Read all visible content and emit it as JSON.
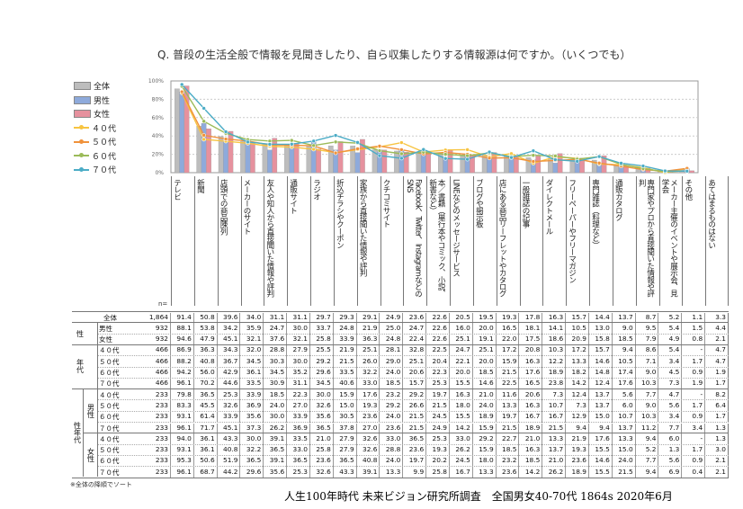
{
  "title": "Q. 普段の生活全般で情報を見聞きしたり、自ら収集したりする情報源は何ですか。（いくつでも）",
  "n_label": "n=",
  "note": "※全体の降順でソート",
  "credit": "人生100年時代 未来ビジョン研究所調査　全国男女40-70代 1864s  2020年6月",
  "colors": {
    "全体": "#bdbdbd",
    "男性": "#8eaadb",
    "女性": "#e6919e",
    "４０代": "#f7c441",
    "５０代": "#f0923b",
    "６０代": "#9bbb59",
    "７０代": "#4bacc6"
  },
  "chart_data": {
    "type": "bar",
    "ylim": [
      0,
      100
    ],
    "yticks": [
      "0%",
      "20%",
      "40%",
      "60%",
      "80%",
      "100%"
    ],
    "grid": true,
    "legend_position": "left",
    "categories": [
      "テレビ",
      "新聞",
      "店頭での商品陳列",
      "メーカーのサイト",
      "友人や知人から直接聞いた情報や評判",
      "通販サイト",
      "ラジオ",
      "折込チラシやクーポン",
      "家族から直接聞いた情報や評判",
      "クチコミサイト",
      "Facebook、Twitter、InstagramなどのSNS",
      "本／書籍（単行本やコミック、小説、新書など）",
      "LINEなどのメッセージサービス",
      "ブログや掲示板",
      "店にある商品リーフレットやカタログ",
      "一般雑誌の記事",
      "ダイレクトメール",
      "フリーペーパーやフリーマガジン",
      "専門雑誌（料理など）",
      "通販カタログ",
      "専門家やプロから直接聞いた情報や評判",
      "メーカー主催のイベントや展示会、見学会",
      "その他",
      "あてはまるものはない"
    ],
    "bar_series": [
      "全体",
      "男性",
      "女性"
    ],
    "line_series": [
      "４０代",
      "５０代",
      "６０代",
      "７０代"
    ]
  },
  "table": {
    "groups": [
      {
        "label": "",
        "rows": [
          {
            "label": "全体",
            "n": "1,864",
            "values": [
              "91.4",
              "50.8",
              "39.6",
              "34.0",
              "31.1",
              "31.1",
              "29.7",
              "29.3",
              "29.1",
              "24.9",
              "23.6",
              "22.6",
              "20.5",
              "19.5",
              "19.3",
              "17.8",
              "16.3",
              "15.7",
              "14.4",
              "13.7",
              "8.7",
              "5.2",
              "1.1",
              "3.3"
            ]
          }
        ]
      },
      {
        "label": "性",
        "rows": [
          {
            "label": "男性",
            "n": "932",
            "values": [
              "88.1",
              "53.8",
              "34.2",
              "35.9",
              "24.7",
              "30.0",
              "33.7",
              "24.8",
              "21.9",
              "25.0",
              "24.7",
              "22.6",
              "16.0",
              "20.0",
              "16.5",
              "18.1",
              "14.1",
              "10.5",
              "13.0",
              "9.0",
              "9.5",
              "5.4",
              "1.5",
              "4.4"
            ]
          },
          {
            "label": "女性",
            "n": "932",
            "values": [
              "94.6",
              "47.9",
              "45.1",
              "32.1",
              "37.6",
              "32.1",
              "25.8",
              "33.9",
              "36.3",
              "24.8",
              "22.4",
              "22.6",
              "25.1",
              "19.1",
              "22.0",
              "17.5",
              "18.6",
              "20.9",
              "15.8",
              "18.5",
              "7.9",
              "4.9",
              "0.8",
              "2.1"
            ]
          }
        ]
      },
      {
        "label": "年代",
        "rows": [
          {
            "label": "４０代",
            "n": "466",
            "values": [
              "86.9",
              "36.3",
              "34.3",
              "32.0",
              "28.8",
              "27.9",
              "25.5",
              "21.9",
              "25.1",
              "28.1",
              "32.8",
              "22.5",
              "24.7",
              "25.1",
              "17.2",
              "20.8",
              "10.3",
              "17.2",
              "15.7",
              "9.4",
              "8.6",
              "5.4",
              "-",
              "4.7"
            ]
          },
          {
            "label": "５０代",
            "n": "466",
            "values": [
              "88.2",
              "40.8",
              "36.7",
              "34.5",
              "30.3",
              "30.0",
              "29.2",
              "21.5",
              "26.0",
              "29.0",
              "25.1",
              "20.4",
              "22.1",
              "20.0",
              "15.9",
              "16.3",
              "12.2",
              "13.3",
              "14.6",
              "10.5",
              "7.1",
              "3.4",
              "1.7",
              "4.7"
            ]
          },
          {
            "label": "６０代",
            "n": "466",
            "values": [
              "94.2",
              "56.0",
              "42.9",
              "36.1",
              "34.5",
              "35.2",
              "29.6",
              "33.5",
              "32.2",
              "24.0",
              "20.6",
              "22.3",
              "20.0",
              "18.5",
              "21.5",
              "17.6",
              "18.9",
              "18.2",
              "14.8",
              "17.4",
              "9.0",
              "4.5",
              "0.9",
              "1.9"
            ]
          },
          {
            "label": "７０代",
            "n": "466",
            "values": [
              "96.1",
              "70.2",
              "44.6",
              "33.5",
              "30.9",
              "31.1",
              "34.5",
              "40.6",
              "33.0",
              "18.5",
              "15.7",
              "25.3",
              "15.5",
              "14.6",
              "22.5",
              "16.5",
              "23.8",
              "14.2",
              "12.4",
              "17.6",
              "10.3",
              "7.3",
              "1.9",
              "1.7"
            ]
          }
        ]
      },
      {
        "label": "性年代",
        "sub": "男性",
        "rows": [
          {
            "label": "４０代",
            "n": "233",
            "values": [
              "79.8",
              "36.5",
              "25.3",
              "33.9",
              "18.5",
              "22.3",
              "30.0",
              "15.9",
              "17.6",
              "23.2",
              "29.2",
              "19.7",
              "16.3",
              "21.0",
              "11.6",
              "20.6",
              "7.3",
              "12.4",
              "13.7",
              "5.6",
              "7.7",
              "4.7",
              "-",
              "8.2"
            ]
          },
          {
            "label": "５０代",
            "n": "233",
            "values": [
              "83.3",
              "45.5",
              "32.6",
              "36.9",
              "24.0",
              "27.0",
              "32.6",
              "15.0",
              "19.3",
              "29.2",
              "26.6",
              "21.5",
              "18.0",
              "24.0",
              "13.3",
              "16.3",
              "10.7",
              "7.3",
              "13.7",
              "6.0",
              "9.0",
              "5.6",
              "1.7",
              "6.4"
            ]
          },
          {
            "label": "６０代",
            "n": "233",
            "values": [
              "93.1",
              "61.4",
              "33.9",
              "35.6",
              "30.0",
              "33.9",
              "35.6",
              "30.5",
              "23.6",
              "24.0",
              "21.5",
              "24.5",
              "15.5",
              "18.9",
              "19.7",
              "16.7",
              "16.7",
              "12.9",
              "15.0",
              "10.7",
              "10.3",
              "3.4",
              "0.9",
              "1.7"
            ]
          },
          {
            "label": "７０代",
            "n": "233",
            "values": [
              "96.1",
              "71.7",
              "45.1",
              "37.3",
              "26.2",
              "36.9",
              "36.5",
              "37.8",
              "27.0",
              "23.6",
              "21.5",
              "24.9",
              "14.2",
              "15.9",
              "21.5",
              "18.9",
              "21.5",
              "9.4",
              "9.4",
              "13.7",
              "11.2",
              "7.7",
              "3.4",
              "1.3"
            ]
          }
        ]
      },
      {
        "label": "",
        "sub": "女性",
        "rows": [
          {
            "label": "４０代",
            "n": "233",
            "values": [
              "94.0",
              "36.1",
              "43.3",
              "30.0",
              "39.1",
              "33.5",
              "21.0",
              "27.9",
              "32.6",
              "33.0",
              "36.5",
              "25.3",
              "33.0",
              "29.2",
              "22.7",
              "21.0",
              "13.3",
              "21.9",
              "17.6",
              "13.3",
              "9.4",
              "6.0",
              "-",
              "1.3"
            ]
          },
          {
            "label": "５０代",
            "n": "233",
            "values": [
              "93.1",
              "36.1",
              "40.8",
              "32.2",
              "36.5",
              "33.0",
              "25.8",
              "27.9",
              "32.6",
              "28.8",
              "23.6",
              "19.3",
              "26.2",
              "15.9",
              "18.5",
              "16.3",
              "13.7",
              "19.3",
              "15.5",
              "15.0",
              "5.2",
              "1.3",
              "1.7",
              "3.0"
            ]
          },
          {
            "label": "６０代",
            "n": "233",
            "values": [
              "95.3",
              "50.6",
              "51.9",
              "36.5",
              "39.1",
              "36.5",
              "23.6",
              "36.5",
              "40.8",
              "24.0",
              "19.7",
              "20.2",
              "24.5",
              "18.0",
              "23.2",
              "18.5",
              "21.0",
              "23.6",
              "14.6",
              "24.0",
              "7.7",
              "5.6",
              "0.9",
              "2.1"
            ]
          },
          {
            "label": "７０代",
            "n": "233",
            "values": [
              "96.1",
              "68.7",
              "44.2",
              "29.6",
              "35.6",
              "25.3",
              "32.6",
              "43.3",
              "39.1",
              "13.3",
              "9.9",
              "25.8",
              "16.7",
              "13.3",
              "23.6",
              "14.2",
              "26.2",
              "18.9",
              "15.5",
              "21.5",
              "9.4",
              "6.9",
              "0.4",
              "2.1"
            ]
          }
        ]
      }
    ]
  }
}
